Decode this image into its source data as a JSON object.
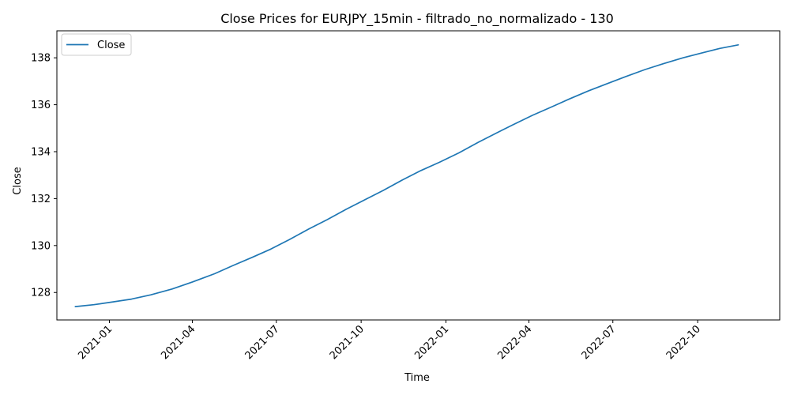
{
  "chart_data": {
    "type": "line",
    "title": "Close Prices for EURJPY_15min - filtrado_no_normalizado - 130",
    "xlabel": "Time",
    "ylabel": "Close",
    "x_ticks": [
      "2021-01",
      "2021-04",
      "2021-07",
      "2021-10",
      "2022-01",
      "2022-04",
      "2022-07",
      "2022-10"
    ],
    "y_ticks": [
      "128",
      "130",
      "132",
      "134",
      "136",
      "138"
    ],
    "xlim": [
      "2020-11-05",
      "2022-12-29"
    ],
    "ylim": [
      126.83,
      139.15
    ],
    "grid": false,
    "legend_position": "top-left",
    "series": [
      {
        "name": "Close",
        "color": "#1f77b4",
        "x": [
          "2020-11-25",
          "2020-12-15",
          "2021-01-05",
          "2021-01-25",
          "2021-02-15",
          "2021-03-10",
          "2021-04-01",
          "2021-04-25",
          "2021-05-15",
          "2021-06-05",
          "2021-06-25",
          "2021-07-15",
          "2021-08-05",
          "2021-08-25",
          "2021-09-15",
          "2021-10-05",
          "2021-10-25",
          "2021-11-15",
          "2021-12-05",
          "2021-12-25",
          "2022-01-15",
          "2022-02-05",
          "2022-02-25",
          "2022-03-15",
          "2022-04-05",
          "2022-04-25",
          "2022-05-15",
          "2022-06-05",
          "2022-06-25",
          "2022-07-15",
          "2022-08-05",
          "2022-08-25",
          "2022-09-15",
          "2022-10-05",
          "2022-10-25",
          "2022-11-14"
        ],
        "y": [
          127.4,
          127.48,
          127.6,
          127.72,
          127.9,
          128.15,
          128.45,
          128.8,
          129.15,
          129.5,
          129.85,
          130.25,
          130.7,
          131.1,
          131.55,
          131.95,
          132.35,
          132.8,
          133.2,
          133.55,
          133.95,
          134.4,
          134.8,
          135.15,
          135.55,
          135.9,
          136.25,
          136.6,
          136.9,
          137.2,
          137.5,
          137.75,
          138.0,
          138.2,
          138.4,
          138.55
        ]
      }
    ]
  }
}
